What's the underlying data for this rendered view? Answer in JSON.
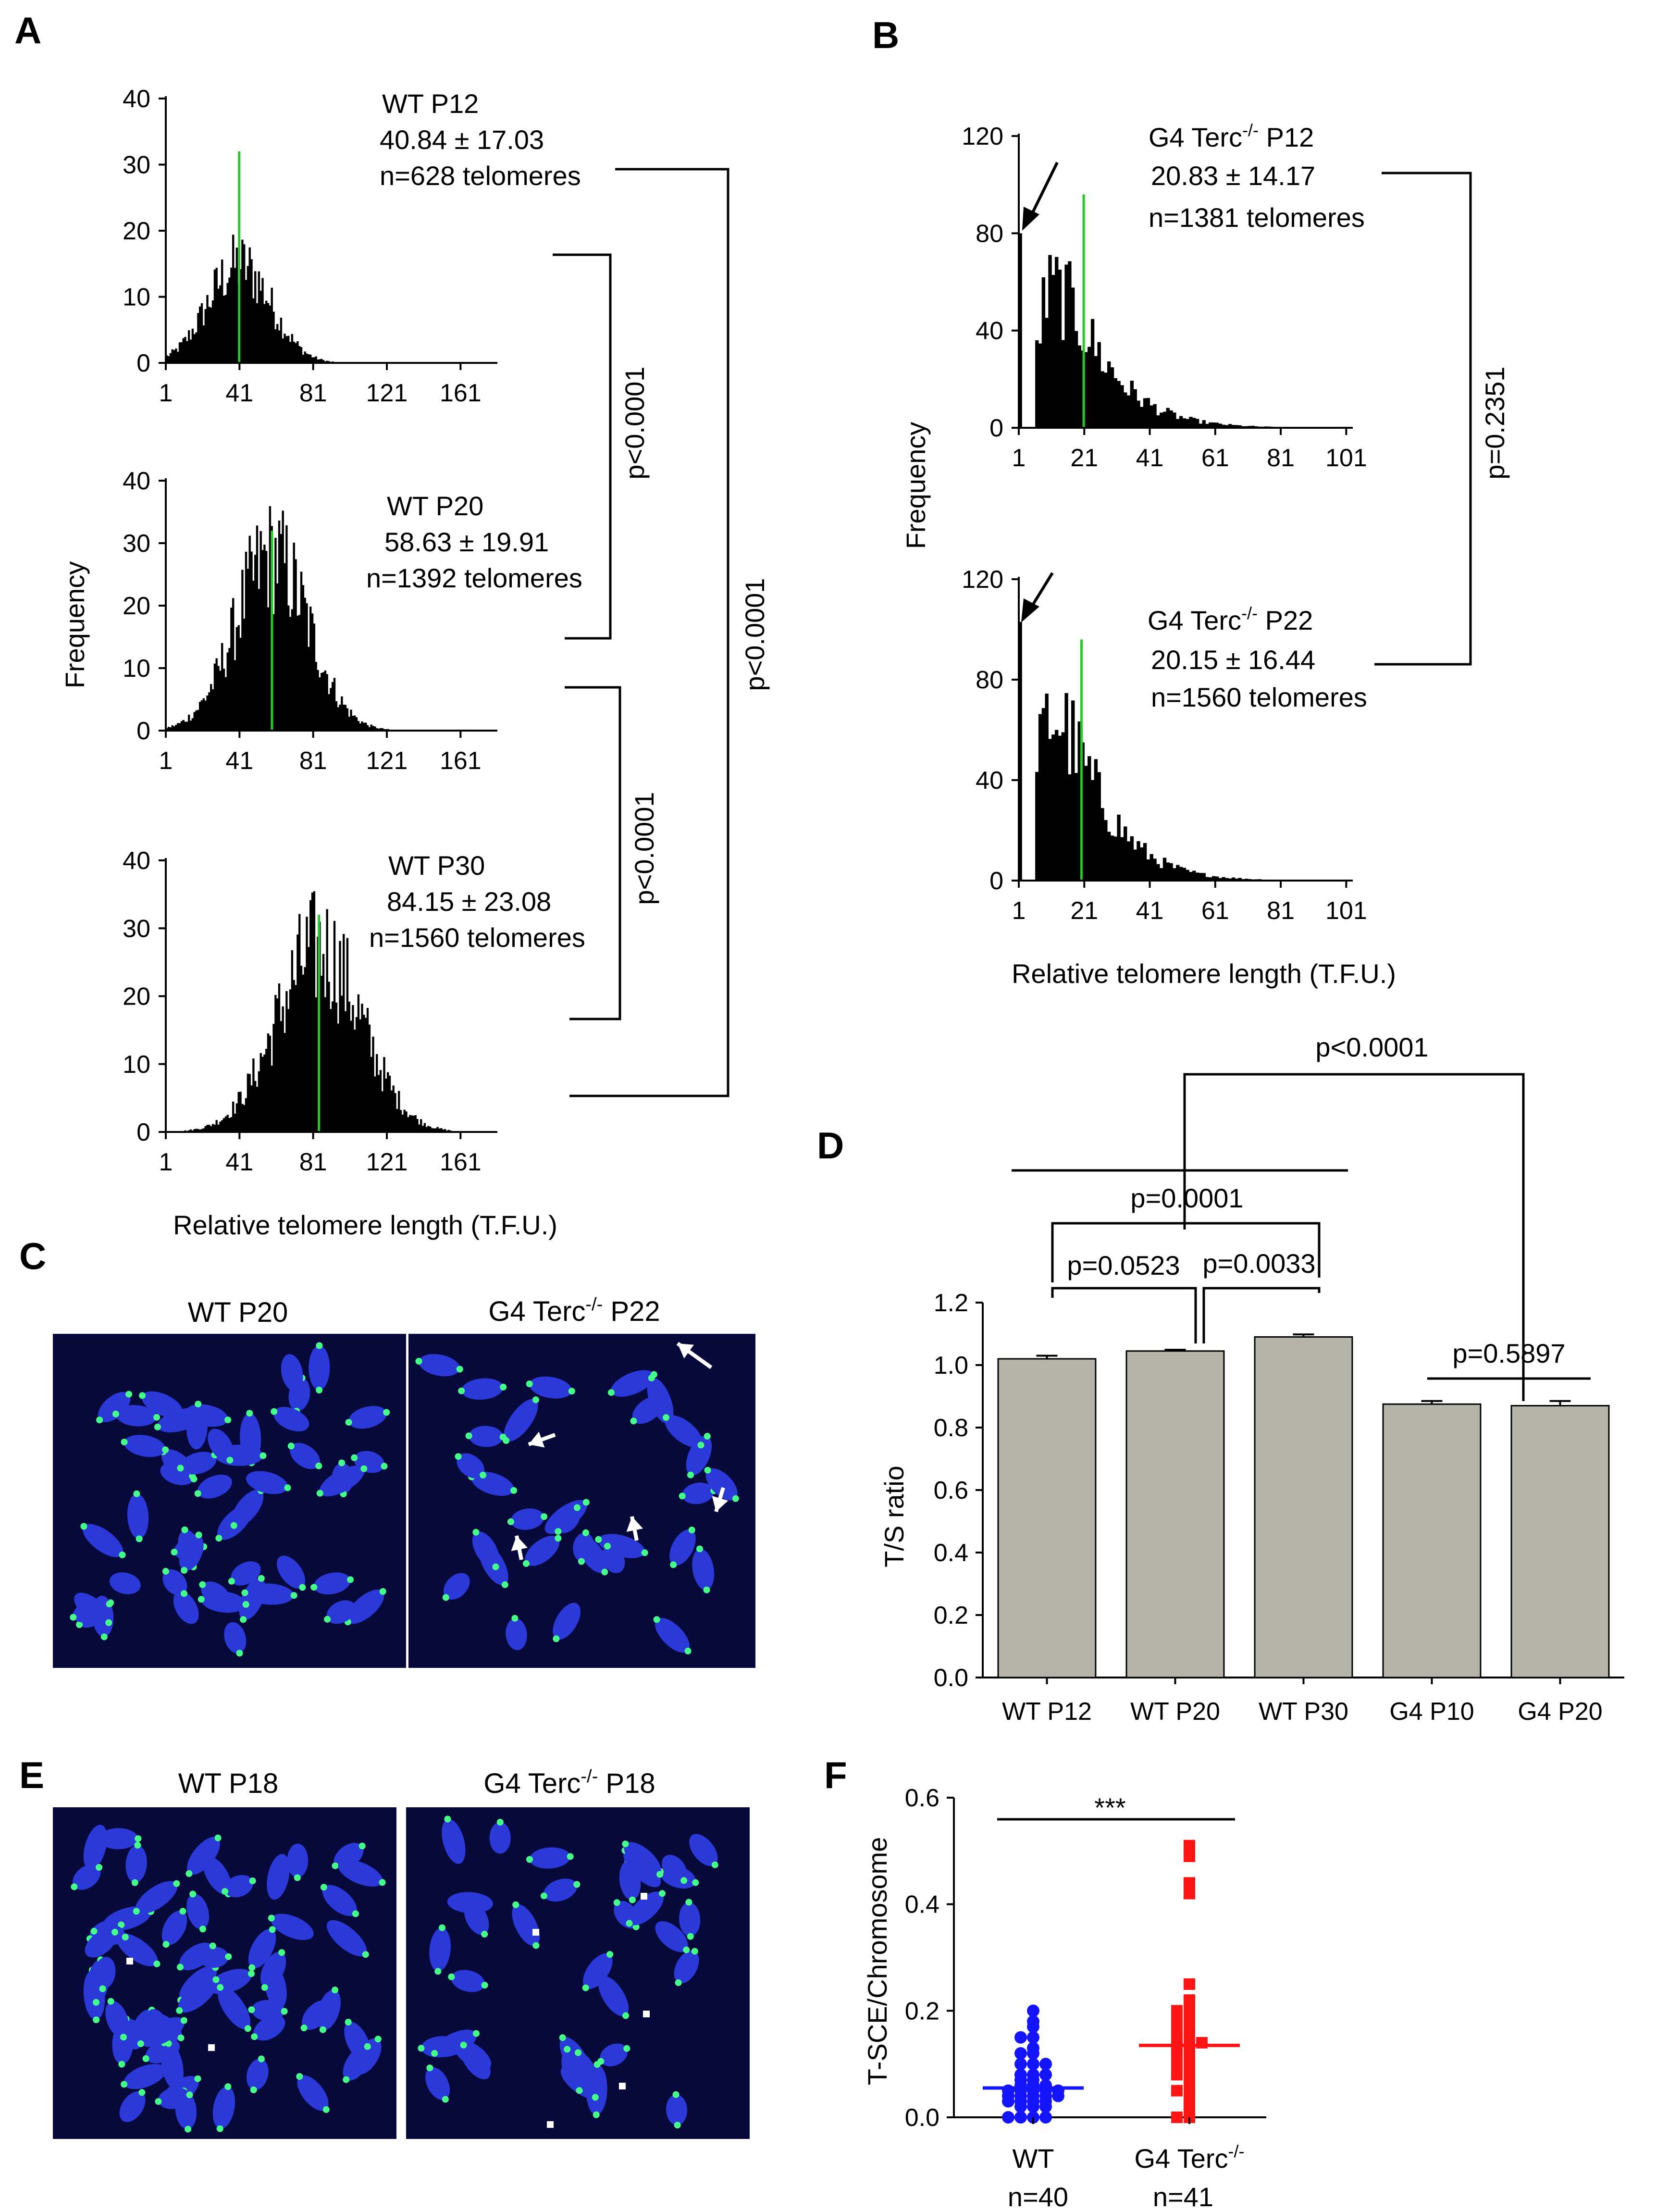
{
  "figure": {
    "panel_letters": {
      "a": "A",
      "b": "B",
      "c": "C",
      "d": "D",
      "e": "E",
      "f": "F"
    }
  },
  "colors": {
    "bar": "#000000",
    "mean_line": "#22cc22",
    "column_fill": "#b4b4a8",
    "wt_points": "#1414ff",
    "g4_points": "#ff1414",
    "micro_bg": "#06093a",
    "micro_chrom": "#2a39d8",
    "micro_telo": "#44ff88"
  },
  "chart_data": [
    {
      "id": "A1",
      "type": "bar",
      "panel": "A",
      "title": "WT P12",
      "stat": "40.84 ± 17.03",
      "n": "n=628 telomeres",
      "ylim": [
        0,
        40
      ],
      "yticks": [
        0,
        10,
        20,
        30,
        40
      ],
      "xticks": [
        "1",
        "41",
        "81",
        "121",
        "161"
      ],
      "xlim": [
        1,
        181
      ],
      "mean": 40.84,
      "sd": 17.03,
      "count": 628
    },
    {
      "id": "A2",
      "type": "bar",
      "panel": "A",
      "title": "WT P20",
      "stat": "58.63 ± 19.91",
      "n": "n=1392 telomeres",
      "ylim": [
        0,
        40
      ],
      "yticks": [
        0,
        10,
        20,
        30,
        40
      ],
      "xticks": [
        "1",
        "41",
        "81",
        "121",
        "161"
      ],
      "xlim": [
        1,
        181
      ],
      "mean": 58.63,
      "sd": 19.91,
      "count": 1392
    },
    {
      "id": "A3",
      "type": "bar",
      "panel": "A",
      "title": "WT P30",
      "stat": "84.15 ± 23.08",
      "n": "n=1560 telomeres",
      "ylim": [
        0,
        40
      ],
      "yticks": [
        0,
        10,
        20,
        30,
        40
      ],
      "xticks": [
        "1",
        "41",
        "81",
        "121",
        "161"
      ],
      "xlim": [
        1,
        181
      ],
      "mean": 84.15,
      "sd": 23.08,
      "count": 1560,
      "xlabel": "Relative telomere length (T.F.U.)"
    },
    {
      "id": "B1",
      "type": "bar",
      "panel": "B",
      "title": "G4 Terc",
      "title_sup": "-/-",
      "title_tail": " P12",
      "stat": "20.83 ± 14.17",
      "n": "n=1381 telomeres",
      "ylim": [
        0,
        120
      ],
      "yticks": [
        0,
        40,
        80,
        120
      ],
      "xticks": [
        "1",
        "21",
        "41",
        "61",
        "81",
        "101"
      ],
      "xlim": [
        1,
        103
      ],
      "mean": 20.83,
      "sd": 14.17,
      "count": 1381,
      "zero_bin": 80
    },
    {
      "id": "B2",
      "type": "bar",
      "panel": "B",
      "title": "G4 Terc",
      "title_sup": "-/-",
      "title_tail": " P22",
      "stat": "20.15 ± 16.44",
      "n": "n=1560 telomeres",
      "ylim": [
        0,
        120
      ],
      "yticks": [
        0,
        40,
        80,
        120
      ],
      "xticks": [
        "1",
        "21",
        "41",
        "61",
        "81",
        "101"
      ],
      "xlim": [
        1,
        103
      ],
      "mean": 20.15,
      "sd": 16.44,
      "count": 1560,
      "zero_bin": 103,
      "xlabel": "Relative telomere length (T.F.U.)"
    },
    {
      "id": "D",
      "type": "bar",
      "panel": "D",
      "categories": [
        "WT P12",
        "WT P20",
        "WT P30",
        "G4 P10",
        "G4 P20"
      ],
      "values": [
        1.02,
        1.045,
        1.09,
        0.875,
        0.87
      ],
      "errors": [
        0.01,
        0.004,
        0.008,
        0.01,
        0.015
      ],
      "ylabel": "T/S ratio",
      "ylim": [
        0,
        1.2
      ],
      "yticks": [
        "0.0",
        "0.2",
        "0.4",
        "0.6",
        "0.8",
        "1.0",
        "1.2"
      ]
    },
    {
      "id": "F",
      "type": "scatter",
      "panel": "F",
      "categories": [
        "WT",
        "G4 Terc"
      ],
      "cat_sup": [
        "",
        "-/-"
      ],
      "n_labels": [
        "n=40",
        "n=41"
      ],
      "means": [
        0.055,
        0.135
      ],
      "ylabel": "T-SCE/Chromosome",
      "ylim": [
        0,
        0.6
      ],
      "yticks": [
        "0.0",
        "0.2",
        "0.4",
        "0.6"
      ],
      "sig": "***",
      "series": [
        {
          "name": "WT",
          "values": [
            0.2,
            0.18,
            0.17,
            0.15,
            0.15,
            0.13,
            0.12,
            0.12,
            0.1,
            0.1,
            0.1,
            0.08,
            0.08,
            0.08,
            0.07,
            0.07,
            0.06,
            0.06,
            0.06,
            0.05,
            0.05,
            0.05,
            0.05,
            0.05,
            0.04,
            0.04,
            0.04,
            0.04,
            0.04,
            0.03,
            0.03,
            0.03,
            0.03,
            0.02,
            0.02,
            0.02,
            0.0,
            0.0,
            0.0,
            0.0
          ]
        },
        {
          "name": "G4 Terc-/-",
          "values": [
            0.51,
            0.49,
            0.44,
            0.42,
            0.25,
            0.22,
            0.2,
            0.2,
            0.19,
            0.19,
            0.18,
            0.17,
            0.17,
            0.16,
            0.16,
            0.15,
            0.15,
            0.14,
            0.14,
            0.14,
            0.13,
            0.13,
            0.12,
            0.12,
            0.11,
            0.11,
            0.1,
            0.1,
            0.09,
            0.08,
            0.08,
            0.07,
            0.06,
            0.05,
            0.05,
            0.04,
            0.03,
            0.02,
            0.01,
            0.0,
            0.0
          ]
        }
      ]
    }
  ],
  "axis_labels": {
    "frequency": "Frequency"
  },
  "comparisons": {
    "A_p12_p20": "p<0.0001",
    "A_p20_p30": "p<0.0001",
    "A_p12_p30": "p<0.0001",
    "B_p12_p22": "p=0.2351",
    "D_g4_vs_wt": "p<0.0001",
    "D_p12_p30": "p=0.0001",
    "D_p12_p20": "p=0.0523",
    "D_p20_p30": "p=0.0033",
    "D_g4p10_g4p20": "p=0.5897"
  },
  "micrographs": {
    "C_left": "WT P20",
    "C_right": {
      "pre": "G4 Terc",
      "sup": "-/-",
      "post": " P22"
    },
    "E_left": "WT P18",
    "E_right": {
      "pre": "G4 Terc",
      "sup": "-/-",
      "post": " P18"
    }
  }
}
